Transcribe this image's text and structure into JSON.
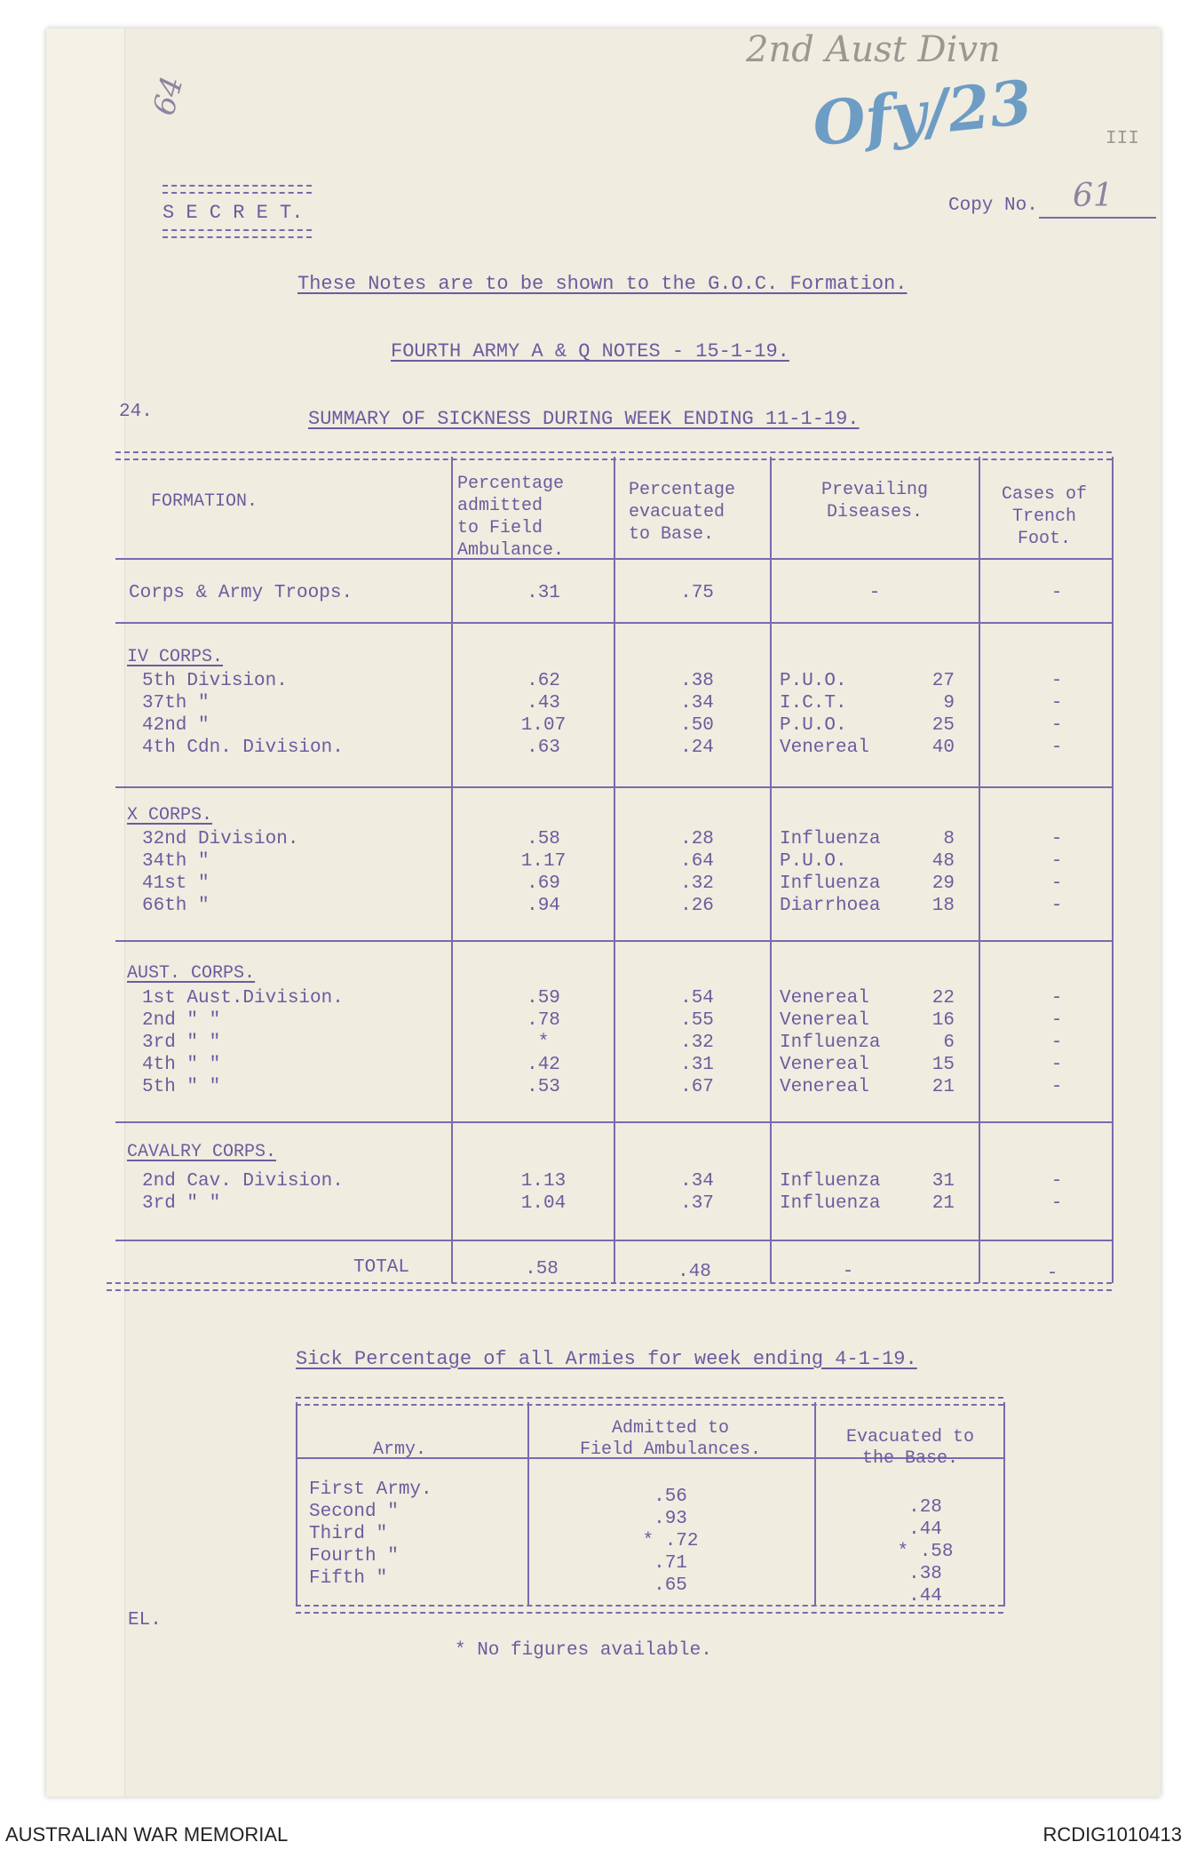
{
  "handwritten": {
    "folio": "64",
    "reference": "2nd Aust Divn",
    "stamp": "Ofy/23",
    "copy_number": "61",
    "margin_mark": "III"
  },
  "header": {
    "classification": "S E C R E T.",
    "copy_label": "Copy No.",
    "notice": "These Notes are to be shown to the G.O.C. Formation.",
    "title": "FOURTH ARMY A & Q  NOTES - 15-1-19.",
    "section_number": "24.",
    "section_title": "SUMMARY OF SICKNESS DURING WEEK ENDING 11-1-19."
  },
  "main_table": {
    "columns": [
      [
        "FORMATION."
      ],
      [
        "Percentage",
        "admitted",
        "to Field",
        "Ambulance."
      ],
      [
        "Percentage",
        "evacuated",
        "to Base."
      ],
      [
        "Prevailing",
        "Diseases."
      ],
      [
        "Cases of",
        "Trench",
        "Foot."
      ]
    ],
    "groups": [
      {
        "heading": "",
        "rows": [
          {
            "formation": "Corps & Army Troops.",
            "admitted": ".31",
            "evacuated": ".75",
            "disease": "-",
            "count": "",
            "trench": "-"
          }
        ]
      },
      {
        "heading": "IV CORPS.",
        "rows": [
          {
            "formation": "5th Division.",
            "admitted": ".62",
            "evacuated": ".38",
            "disease": "P.U.O.",
            "count": "27",
            "trench": "-"
          },
          {
            "formation": "37th    \"",
            "admitted": ".43",
            "evacuated": ".34",
            "disease": "I.C.T.",
            "count": "9",
            "trench": "-"
          },
          {
            "formation": "42nd    \"",
            "admitted": "1.07",
            "evacuated": ".50",
            "disease": "P.U.O.",
            "count": "25",
            "trench": "-"
          },
          {
            "formation": "4th Cdn. Division.",
            "admitted": ".63",
            "evacuated": ".24",
            "disease": "Venereal",
            "count": "40",
            "trench": "-"
          }
        ]
      },
      {
        "heading": "X CORPS.",
        "rows": [
          {
            "formation": "32nd Division.",
            "admitted": ".58",
            "evacuated": ".28",
            "disease": "Influenza",
            "count": "8",
            "trench": "-"
          },
          {
            "formation": "34th    \"",
            "admitted": "1.17",
            "evacuated": ".64",
            "disease": "P.U.O.",
            "count": "48",
            "trench": "-"
          },
          {
            "formation": "41st    \"",
            "admitted": ".69",
            "evacuated": ".32",
            "disease": "Influenza",
            "count": "29",
            "trench": "-"
          },
          {
            "formation": "66th    \"",
            "admitted": ".94",
            "evacuated": ".26",
            "disease": "Diarrhoea",
            "count": "18",
            "trench": "-"
          }
        ]
      },
      {
        "heading": "AUST. CORPS.",
        "rows": [
          {
            "formation": "1st Aust.Division.",
            "admitted": ".59",
            "evacuated": ".54",
            "disease": "Venereal",
            "count": "22",
            "trench": "-"
          },
          {
            "formation": "2nd   \"    \"",
            "admitted": ".78",
            "evacuated": ".55",
            "disease": "Venereal",
            "count": "16",
            "trench": "-"
          },
          {
            "formation": "3rd   \"    \"",
            "admitted": "*",
            "evacuated": ".32",
            "disease": "Influenza",
            "count": "6",
            "trench": "-"
          },
          {
            "formation": "4th   \"    \"",
            "admitted": ".42",
            "evacuated": ".31",
            "disease": "Venereal",
            "count": "15",
            "trench": "-"
          },
          {
            "formation": "5th   \"    \"",
            "admitted": ".53",
            "evacuated": ".67",
            "disease": "Venereal",
            "count": "21",
            "trench": "-"
          }
        ]
      },
      {
        "heading": "CAVALRY CORPS.",
        "rows": [
          {
            "formation": "2nd Cav. Division.",
            "admitted": "1.13",
            "evacuated": ".34",
            "disease": "Influenza",
            "count": "31",
            "trench": "-"
          },
          {
            "formation": "3rd  \"     \"",
            "admitted": "1.04",
            "evacuated": ".37",
            "disease": "Influenza",
            "count": "21",
            "trench": "-"
          }
        ]
      }
    ],
    "total": {
      "label": "TOTAL",
      "admitted": ".58",
      "evacuated": ".48",
      "disease": "-",
      "trench": "-"
    }
  },
  "armies_table": {
    "title": "Sick Percentage of all Armies for week ending 4-1-19.",
    "columns": [
      [
        "Army."
      ],
      [
        "Admitted to",
        "Field Ambulances."
      ],
      [
        "Evacuated to",
        "the Base."
      ]
    ],
    "rows": [
      {
        "army": "First Army.",
        "admitted": ".56",
        "evacuated": ".28"
      },
      {
        "army": "Second \"",
        "admitted": ".93",
        "evacuated": ".44"
      },
      {
        "army": "Third  \"",
        "admitted": "* .72",
        "evacuated": "* .58"
      },
      {
        "army": "Fourth \"",
        "admitted": ".71",
        "evacuated": ".38"
      },
      {
        "army": "Fifth  \"",
        "admitted": ".65",
        "evacuated": ".44"
      }
    ]
  },
  "footnote": "*  No figures available.",
  "initials": "EL.",
  "footer": {
    "left": "AUSTRALIAN WAR MEMORIAL",
    "right": "RCDIG1010413"
  }
}
